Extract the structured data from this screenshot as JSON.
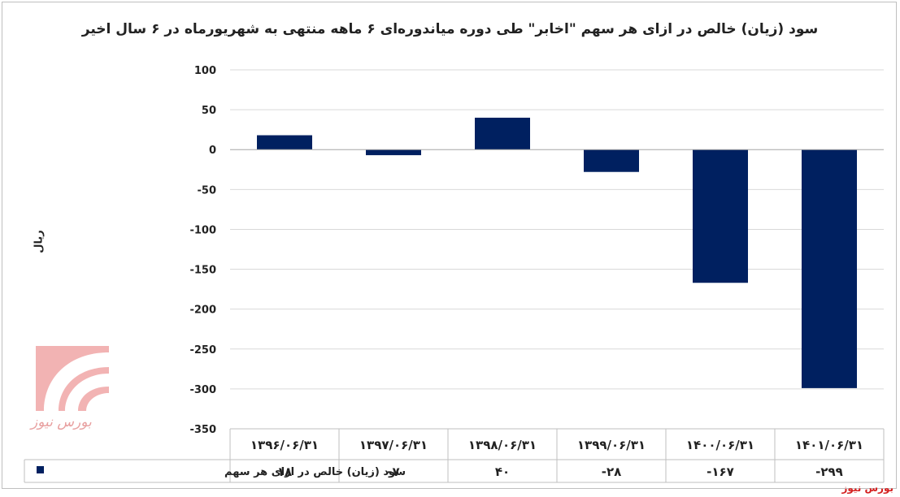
{
  "chart_data": {
    "type": "bar",
    "title": "سود (زیان) خالص در ازای هر سهم \"اخابر\" طی دوره میاندوره‌ای ۶ ماهه منتهی به شهریورماه در ۶ سال اخیر",
    "ylabel": "ریال",
    "xlabel": "",
    "categories": [
      "۱۳۹۶/۰۶/۳۱",
      "۱۳۹۷/۰۶/۳۱",
      "۱۳۹۸/۰۶/۳۱",
      "۱۳۹۹/۰۶/۳۱",
      "۱۴۰۰/۰۶/۳۱",
      "۱۴۰۱/۰۶/۳۱"
    ],
    "ylim": [
      -350,
      100
    ],
    "yticks": [
      100,
      50,
      0,
      -50,
      -100,
      -150,
      -200,
      -250,
      -300,
      -350
    ],
    "ytick_labels": [
      "100",
      "50",
      "0",
      "-50",
      "-100",
      "-150",
      "-200",
      "-250",
      "-300",
      "-350"
    ],
    "series": [
      {
        "name": "سود (زیان) خالص در ازای هر سهم",
        "values": [
          18,
          -7,
          40,
          -28,
          -167,
          -299
        ],
        "value_labels": [
          "۱۸",
          "-۷",
          "۴۰",
          "-۲۸",
          "-۱۶۷",
          "-۲۹۹"
        ],
        "color": "#002060"
      }
    ],
    "data_table": true,
    "grid": true
  },
  "logo_text": "بورس نیوز",
  "source": "بورس نیوز"
}
